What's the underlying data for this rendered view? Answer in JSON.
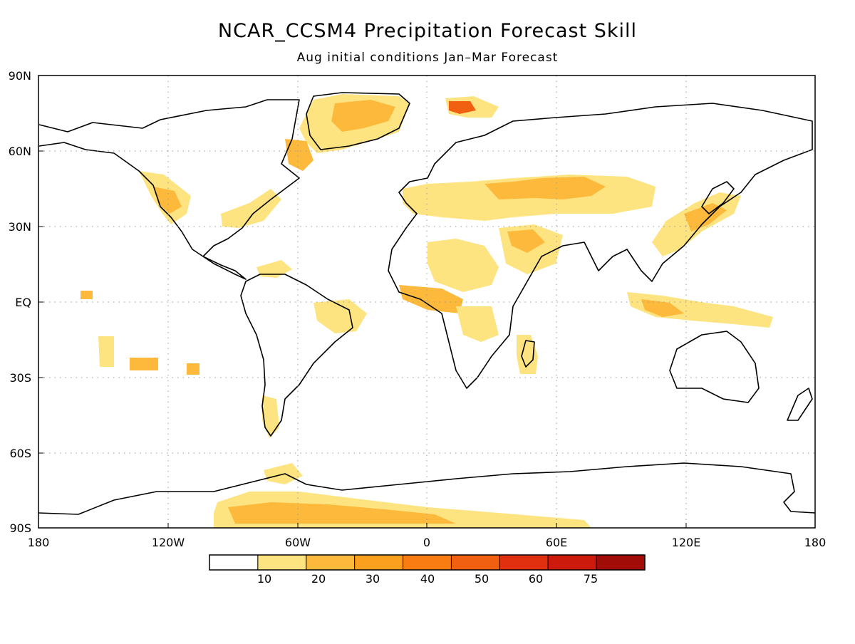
{
  "chart": {
    "title": "NCAR_CCSM4 Precipitation Forecast Skill",
    "subtitle": "Aug initial conditions  Jan–Mar Forecast"
  },
  "axes": {
    "x_ticks": [
      "180",
      "120W",
      "60W",
      "0",
      "60E",
      "120E",
      "180"
    ],
    "y_ticks": [
      "90N",
      "60N",
      "30N",
      "EQ",
      "30S",
      "60S",
      "90S"
    ]
  },
  "colorbar": {
    "labels": [
      "10",
      "20",
      "30",
      "40",
      "50",
      "60",
      "75"
    ],
    "colors": [
      "#ffffff",
      "#fee480",
      "#fdb93c",
      "#fba01e",
      "#f87c12",
      "#f06010",
      "#e03010",
      "#cc1a0c",
      "#a10c08"
    ]
  },
  "chart_data": {
    "type": "heatmap",
    "x_range_deg": [
      -180,
      180
    ],
    "y_range_deg": [
      -90,
      90
    ],
    "grid": true,
    "colorbar_levels": [
      10,
      20,
      30,
      40,
      50,
      60,
      75
    ],
    "colorbar_placement": "bottom"
  }
}
